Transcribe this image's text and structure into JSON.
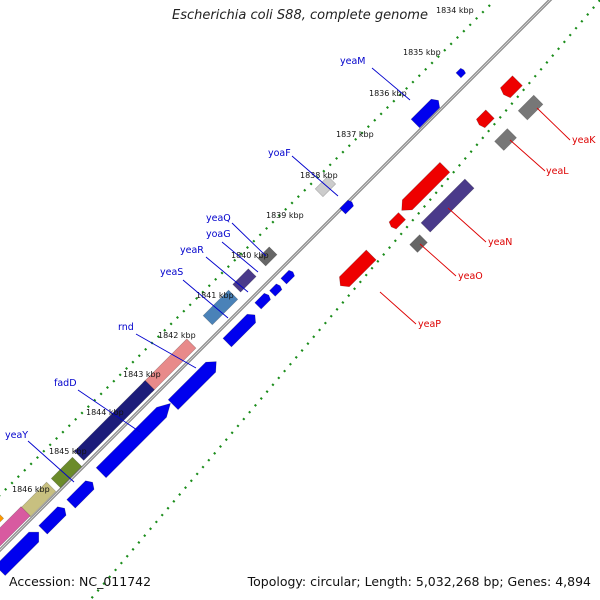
{
  "title": "Escherichia coli S88, complete genome",
  "footer": {
    "accession": "Accession: NC_011742",
    "info": "Topology: circular; Length: 5,032,268 bp; Genes: 4,894"
  },
  "colors": {
    "backbone": "#8a8a8a",
    "tick_marks": "#1a8c1a",
    "forward_label": "#0000cc",
    "reverse_label": "#dd0000",
    "forward_gene": "#0000ee",
    "reverse_gene": "#ee0000"
  },
  "kbp_labels": [
    "1834 kbp",
    "1835 kbp",
    "1836 kbp",
    "1837 kbp",
    "1838 kbp",
    "1839 kbp",
    "1840 kbp",
    "1841 kbp",
    "1842 kbp",
    "1843 kbp",
    "1844 kbp",
    "1845 kbp",
    "1846 kbp"
  ],
  "forward_gene_labels": [
    "yeaM",
    "yoaF",
    "yeaQ",
    "yoaG",
    "yeaR",
    "yeaS",
    "rnd",
    "fadD",
    "yeaY"
  ],
  "reverse_gene_labels": [
    "yeaK",
    "yeaL",
    "yeaN",
    "yeaO",
    "yeaP"
  ]
}
